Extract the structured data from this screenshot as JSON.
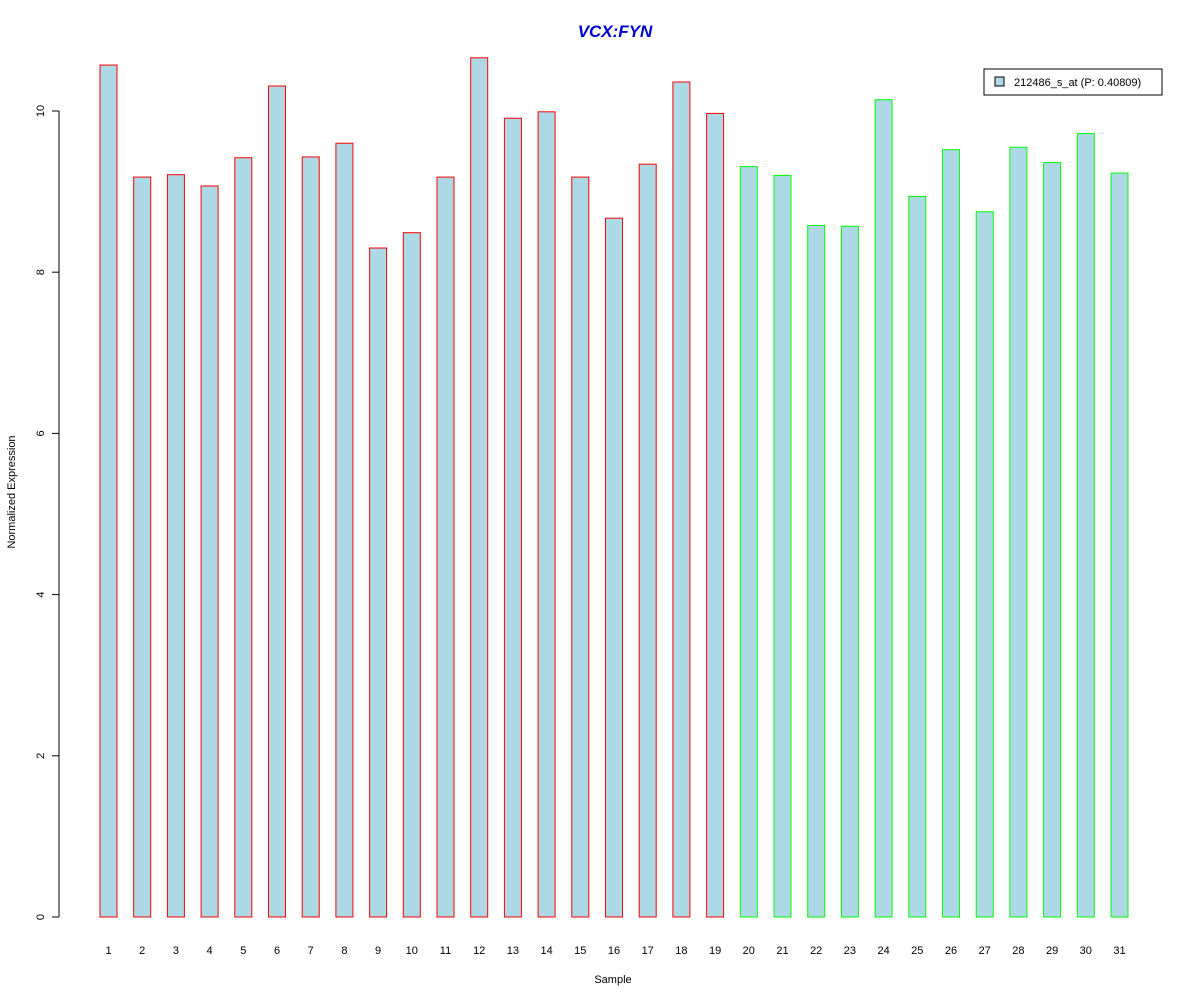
{
  "chart_data": {
    "type": "bar",
    "title": "VCX:FYN",
    "xlabel": "Sample",
    "ylabel": "Normalized Expression",
    "categories": [
      "1",
      "2",
      "3",
      "4",
      "5",
      "6",
      "7",
      "8",
      "9",
      "10",
      "11",
      "12",
      "13",
      "14",
      "15",
      "16",
      "17",
      "18",
      "19",
      "20",
      "21",
      "22",
      "23",
      "24",
      "25",
      "26",
      "27",
      "28",
      "29",
      "30",
      "31"
    ],
    "series": [
      {
        "name": "212486_s_at (P: 0.40809)",
        "values": [
          10.57,
          9.18,
          9.21,
          9.07,
          9.42,
          10.31,
          9.43,
          9.6,
          8.3,
          8.49,
          9.18,
          10.66,
          9.91,
          9.99,
          9.18,
          8.67,
          9.34,
          10.36,
          9.97,
          9.31,
          9.2,
          8.58,
          8.57,
          10.14,
          8.94,
          9.52,
          8.75,
          9.55,
          9.36,
          9.72,
          9.23
        ]
      }
    ],
    "groups": [
      1,
      1,
      1,
      1,
      1,
      1,
      1,
      1,
      1,
      1,
      1,
      1,
      1,
      1,
      1,
      1,
      1,
      1,
      1,
      2,
      2,
      2,
      2,
      2,
      2,
      2,
      2,
      2,
      2,
      2,
      2
    ],
    "ylim": [
      0,
      10
    ],
    "yticks": [
      "0",
      "2",
      "4",
      "6",
      "8",
      "10"
    ],
    "legend_position": "top-right",
    "grid": false,
    "colors": {
      "title": "#0000cc",
      "bar_fill": "#add8e6",
      "group1_border": "#ff0000",
      "group2_border": "#00ff00",
      "axis": "#000000"
    }
  }
}
